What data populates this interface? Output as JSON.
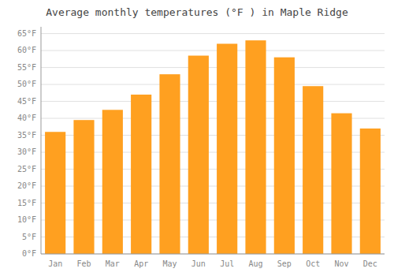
{
  "chart_data": {
    "type": "bar",
    "title": "Average monthly temperatures (°F ) in Maple Ridge",
    "categories": [
      "Jan",
      "Feb",
      "Mar",
      "Apr",
      "May",
      "Jun",
      "Jul",
      "Aug",
      "Sep",
      "Oct",
      "Nov",
      "Dec"
    ],
    "values": [
      36,
      39.5,
      42.5,
      47,
      53,
      58.5,
      62,
      63,
      58,
      49.5,
      41.5,
      37
    ],
    "color": "#FFA020",
    "ylim": [
      0,
      67
    ],
    "yticks": [
      {
        "value": 0,
        "label": "0°F"
      },
      {
        "value": 5,
        "label": "5°F"
      },
      {
        "value": 10,
        "label": "10°F"
      },
      {
        "value": 15,
        "label": "15°F"
      },
      {
        "value": 20,
        "label": "20°F"
      },
      {
        "value": 25,
        "label": "25°F"
      },
      {
        "value": 30,
        "label": "30°F"
      },
      {
        "value": 35,
        "label": "35°F"
      },
      {
        "value": 40,
        "label": "40°F"
      },
      {
        "value": 45,
        "label": "45°F"
      },
      {
        "value": 50,
        "label": "50°F"
      },
      {
        "value": 55,
        "label": "55°F"
      },
      {
        "value": 60,
        "label": "60°F"
      },
      {
        "value": 65,
        "label": "65°F"
      }
    ],
    "grid": true
  }
}
